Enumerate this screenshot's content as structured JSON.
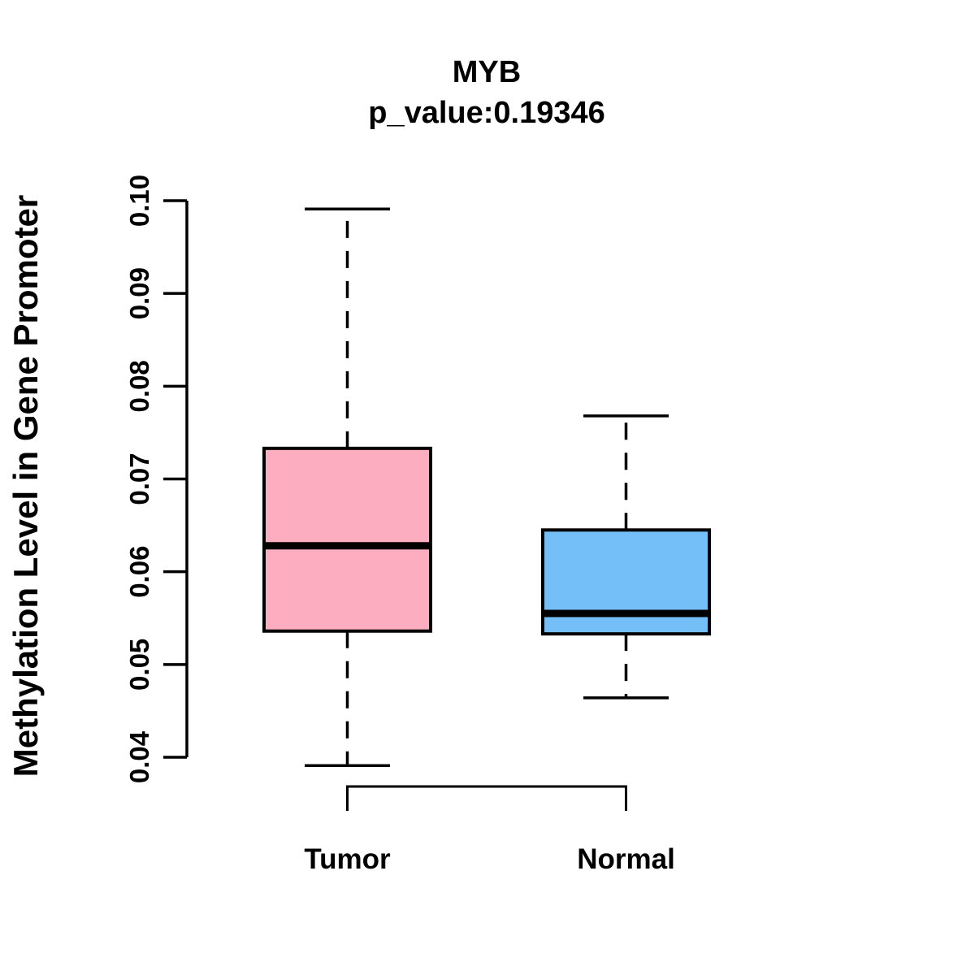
{
  "chart_data": {
    "type": "boxplot",
    "title": "MYB",
    "subtitle": "p_value:0.19346",
    "ylabel": "Methylation Level in Gene Promoter",
    "xlabel": "",
    "categories": [
      "Tumor",
      "Normal"
    ],
    "series": [
      {
        "name": "Tumor",
        "color": "#FCAEC0",
        "whisker_low": 0.0391,
        "q1": 0.0536,
        "median": 0.0628,
        "q3": 0.0733,
        "whisker_high": 0.0991
      },
      {
        "name": "Normal",
        "color": "#74BFF8",
        "whisker_low": 0.0464,
        "q1": 0.0533,
        "median": 0.0555,
        "q3": 0.0645,
        "whisker_high": 0.0768
      }
    ],
    "ylim": [
      0.04,
      0.1
    ],
    "y_ticks": [
      0.04,
      0.05,
      0.06,
      0.07,
      0.08,
      0.09,
      0.1
    ],
    "y_tick_labels": [
      "0.04",
      "0.05",
      "0.06",
      "0.07",
      "0.08",
      "0.09",
      "0.10"
    ],
    "axis_color": "#000000",
    "box_border_color": "#000000",
    "median_color": "#000000",
    "grid": false,
    "legend": "none",
    "group_bracket": true
  }
}
